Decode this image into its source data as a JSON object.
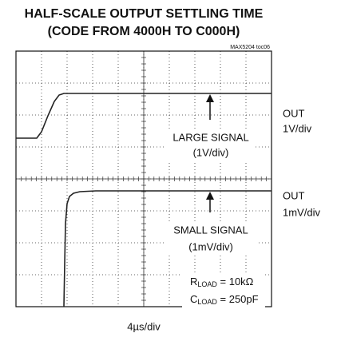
{
  "chart_data": {
    "type": "oscilloscope",
    "title": [
      "HALF-SCALE OUTPUT SETTLING TIME",
      "(CODE FROM 4000H TO C000H)"
    ],
    "figure_id": "MAX5204 toc06",
    "x_label": "4µs/div",
    "channels": [
      {
        "name": "OUT",
        "scale": "1V/div",
        "label": "LARGE SIGNAL",
        "sublabel": "(1V/div)"
      },
      {
        "name": "OUT",
        "scale": "1mV/div",
        "label": "SMALL SIGNAL",
        "sublabel": "(1mV/div)"
      }
    ],
    "conditions": [
      {
        "symbol": "R",
        "subscript": "LOAD",
        "value": " = 10kΩ"
      },
      {
        "symbol": "C",
        "subscript": "LOAD",
        "value": " = 250pF"
      }
    ]
  }
}
